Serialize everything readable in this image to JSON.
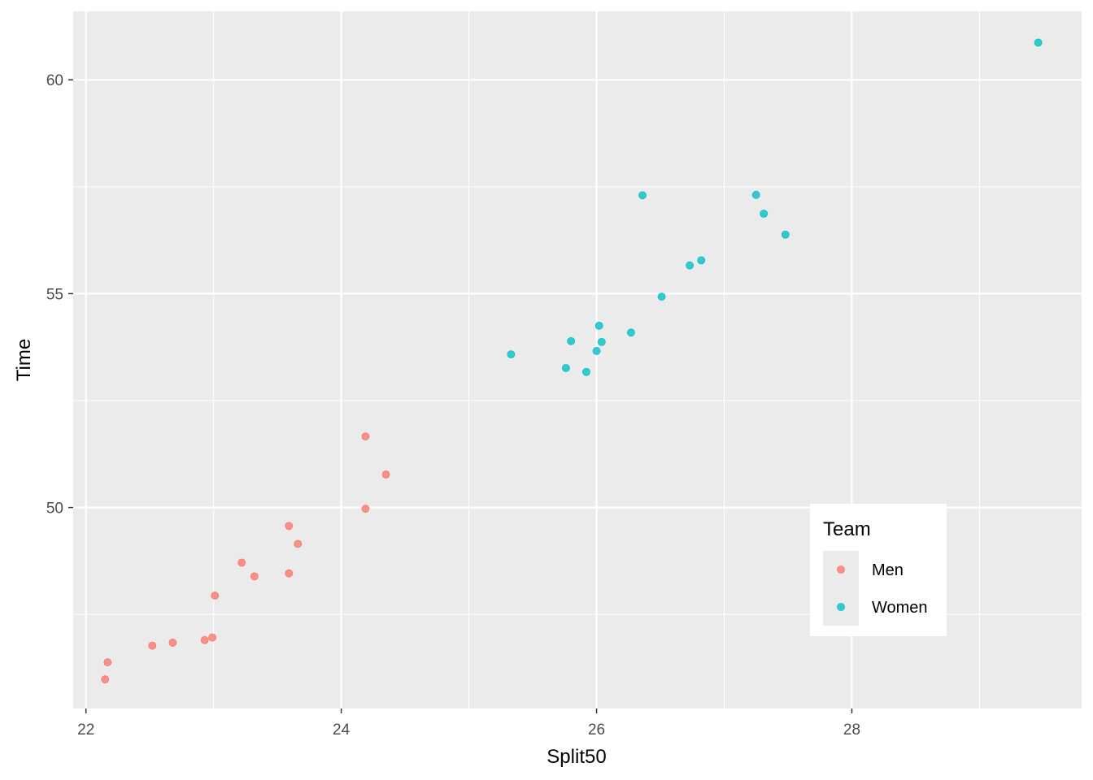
{
  "chart_data": {
    "type": "scatter",
    "xlabel": "Split50",
    "ylabel": "Time",
    "xlim": [
      21.9,
      29.8
    ],
    "ylim": [
      45.3,
      61.6
    ],
    "x_ticks": [
      22,
      24,
      26,
      28
    ],
    "y_ticks": [
      50,
      55,
      60
    ],
    "grid": true,
    "legend": {
      "title": "Team",
      "position": "bottom-right-inside"
    },
    "series": [
      {
        "name": "Men",
        "color": "#f8766d",
        "points": [
          {
            "x": 22.15,
            "y": 45.98
          },
          {
            "x": 22.17,
            "y": 46.38
          },
          {
            "x": 22.52,
            "y": 46.77
          },
          {
            "x": 22.68,
            "y": 46.84
          },
          {
            "x": 22.93,
            "y": 46.9
          },
          {
            "x": 22.99,
            "y": 46.96
          },
          {
            "x": 23.01,
            "y": 47.94
          },
          {
            "x": 23.22,
            "y": 48.71
          },
          {
            "x": 23.32,
            "y": 48.39
          },
          {
            "x": 23.59,
            "y": 48.46
          },
          {
            "x": 23.59,
            "y": 49.57
          },
          {
            "x": 23.66,
            "y": 49.15
          },
          {
            "x": 24.19,
            "y": 51.66
          },
          {
            "x": 24.19,
            "y": 49.97
          },
          {
            "x": 24.35,
            "y": 50.77
          }
        ]
      },
      {
        "name": "Women",
        "color": "#00bfc4",
        "points": [
          {
            "x": 25.33,
            "y": 53.58
          },
          {
            "x": 25.76,
            "y": 53.26
          },
          {
            "x": 25.8,
            "y": 53.89
          },
          {
            "x": 25.92,
            "y": 53.17
          },
          {
            "x": 26.0,
            "y": 53.66
          },
          {
            "x": 26.02,
            "y": 54.25
          },
          {
            "x": 26.04,
            "y": 53.87
          },
          {
            "x": 26.27,
            "y": 54.09
          },
          {
            "x": 26.36,
            "y": 57.3
          },
          {
            "x": 26.51,
            "y": 54.93
          },
          {
            "x": 26.73,
            "y": 55.66
          },
          {
            "x": 26.82,
            "y": 55.78
          },
          {
            "x": 27.25,
            "y": 57.31
          },
          {
            "x": 27.31,
            "y": 56.87
          },
          {
            "x": 27.48,
            "y": 56.38
          },
          {
            "x": 29.46,
            "y": 60.87
          }
        ]
      }
    ]
  }
}
